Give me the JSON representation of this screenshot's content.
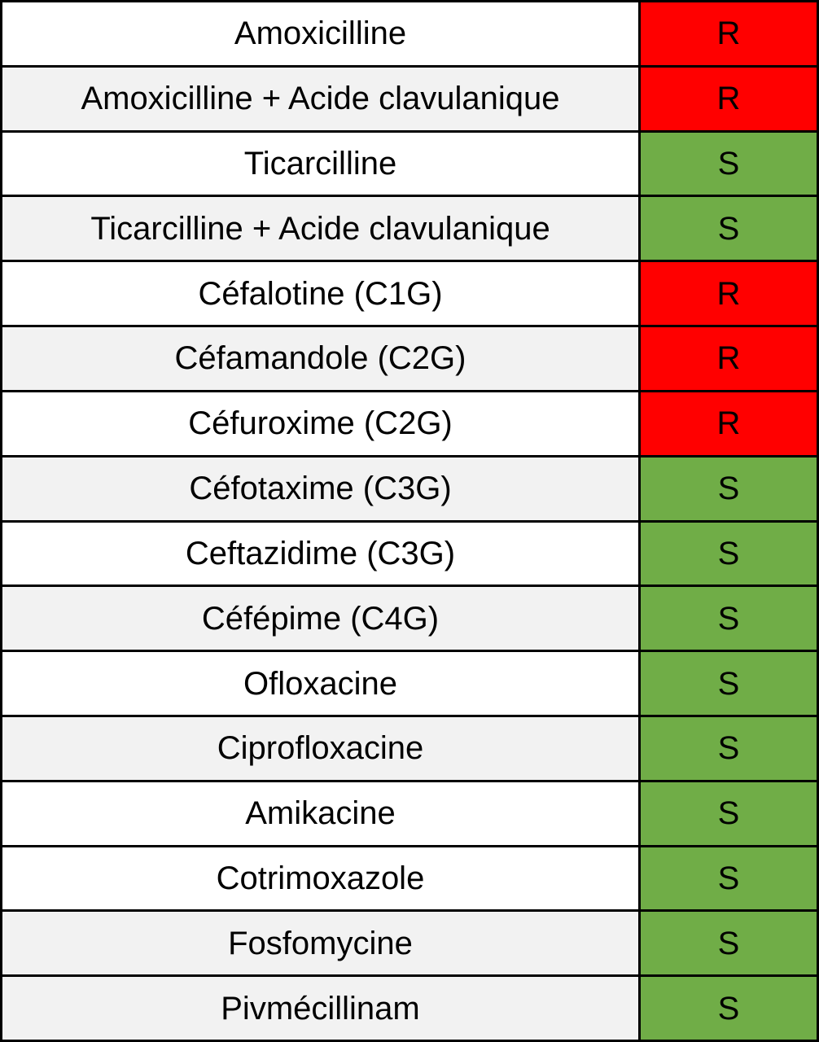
{
  "colors": {
    "resistant_bg": "#FF0000",
    "susceptible_bg": "#70AD47",
    "row_white": "#FFFFFF",
    "row_gray": "#F2F2F2",
    "border": "#000000",
    "text": "#000000"
  },
  "chart_data": {
    "type": "table",
    "rows": [
      {
        "antibiotic": "Amoxicilline",
        "result": "R",
        "shade": "white"
      },
      {
        "antibiotic": "Amoxicilline + Acide clavulanique",
        "result": "R",
        "shade": "gray"
      },
      {
        "antibiotic": "Ticarcilline",
        "result": "S",
        "shade": "white"
      },
      {
        "antibiotic": "Ticarcilline + Acide clavulanique",
        "result": "S",
        "shade": "gray"
      },
      {
        "antibiotic": "Céfalotine (C1G)",
        "result": "R",
        "shade": "white"
      },
      {
        "antibiotic": "Céfamandole (C2G)",
        "result": "R",
        "shade": "gray"
      },
      {
        "antibiotic": "Céfuroxime (C2G)",
        "result": "R",
        "shade": "white"
      },
      {
        "antibiotic": "Céfotaxime (C3G)",
        "result": "S",
        "shade": "gray"
      },
      {
        "antibiotic": "Ceftazidime (C3G)",
        "result": "S",
        "shade": "white"
      },
      {
        "antibiotic": "Céfépime (C4G)",
        "result": "S",
        "shade": "gray"
      },
      {
        "antibiotic": "Ofloxacine",
        "result": "S",
        "shade": "white"
      },
      {
        "antibiotic": "Ciprofloxacine",
        "result": "S",
        "shade": "gray"
      },
      {
        "antibiotic": "Amikacine",
        "result": "S",
        "shade": "white"
      },
      {
        "antibiotic": "Cotrimoxazole",
        "result": "S",
        "shade": "white"
      },
      {
        "antibiotic": "Fosfomycine",
        "result": "S",
        "shade": "gray"
      },
      {
        "antibiotic": "Pivmécillinam",
        "result": "S",
        "shade": "gray"
      }
    ]
  }
}
